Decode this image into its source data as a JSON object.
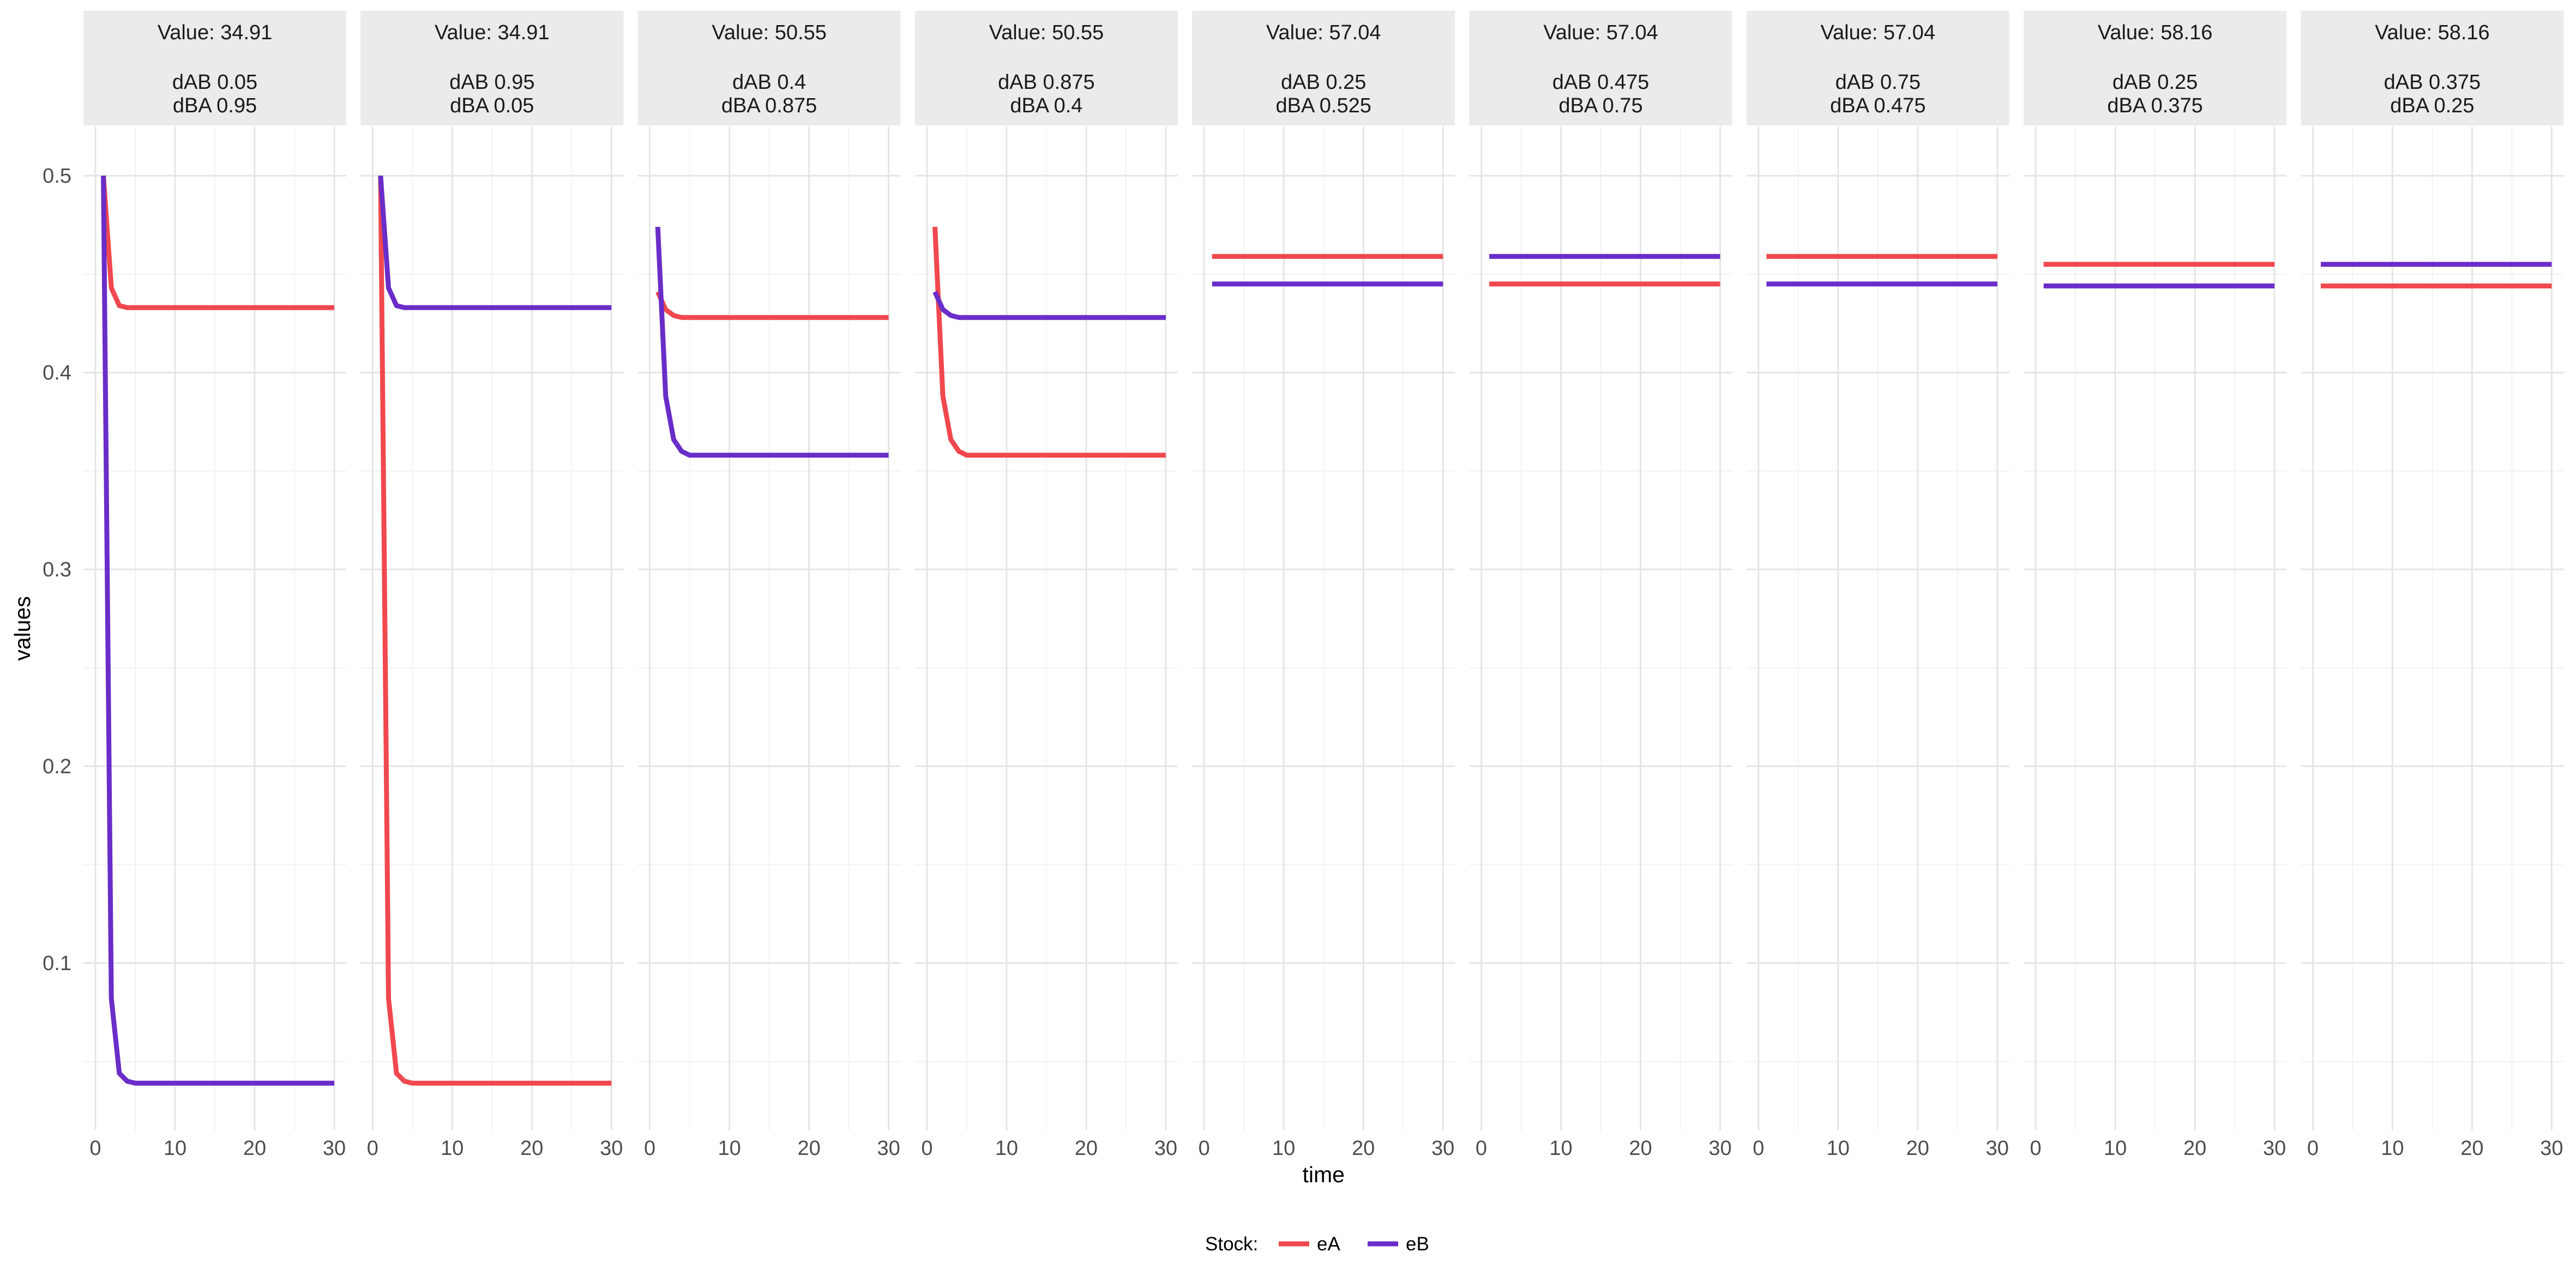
{
  "chart_data": {
    "type": "line",
    "xlabel": "time",
    "ylabel": "values",
    "xlim": [
      0,
      30
    ],
    "ylim": [
      0.015,
      0.525
    ],
    "x_ticks": [
      0,
      10,
      20,
      30
    ],
    "y_ticks": [
      0.1,
      0.2,
      0.3,
      0.4,
      0.5
    ],
    "y_tick_labels": [
      "0.1",
      "0.2",
      "0.3",
      "0.4",
      "0.5"
    ],
    "grid": true,
    "legend": {
      "title": "Stock:",
      "position": "bottom",
      "entries": [
        {
          "name": "eA",
          "color": "#f0484e"
        },
        {
          "name": "eB",
          "color": "#6a2dc8"
        }
      ]
    },
    "panels": [
      {
        "strip": [
          "Value:  34.91",
          "",
          "dAB 0.05",
          " dBA 0.95"
        ],
        "series": [
          {
            "name": "eA",
            "points": [
              [
                1,
                0.5
              ],
              [
                2,
                0.443
              ],
              [
                3,
                0.434
              ],
              [
                4,
                0.433
              ],
              [
                5,
                0.433
              ],
              [
                30,
                0.433
              ]
            ]
          },
          {
            "name": "eB",
            "points": [
              [
                1,
                0.5
              ],
              [
                2,
                0.082
              ],
              [
                3,
                0.044
              ],
              [
                4,
                0.04
              ],
              [
                5,
                0.039
              ],
              [
                30,
                0.039
              ]
            ]
          }
        ]
      },
      {
        "strip": [
          "Value:  34.91",
          "",
          "dAB 0.95",
          " dBA 0.05"
        ],
        "series": [
          {
            "name": "eA",
            "points": [
              [
                1,
                0.5
              ],
              [
                2,
                0.082
              ],
              [
                3,
                0.044
              ],
              [
                4,
                0.04
              ],
              [
                5,
                0.039
              ],
              [
                30,
                0.039
              ]
            ]
          },
          {
            "name": "eB",
            "points": [
              [
                1,
                0.5
              ],
              [
                2,
                0.443
              ],
              [
                3,
                0.434
              ],
              [
                4,
                0.433
              ],
              [
                5,
                0.433
              ],
              [
                30,
                0.433
              ]
            ]
          }
        ]
      },
      {
        "strip": [
          "Value:  50.55",
          "",
          "dAB 0.4",
          "dBA 0.875"
        ],
        "series": [
          {
            "name": "eA",
            "points": [
              [
                1,
                0.441
              ],
              [
                2,
                0.432
              ],
              [
                3,
                0.429
              ],
              [
                4,
                0.428
              ],
              [
                5,
                0.428
              ],
              [
                30,
                0.428
              ]
            ]
          },
          {
            "name": "eB",
            "points": [
              [
                1,
                0.474
              ],
              [
                2,
                0.388
              ],
              [
                3,
                0.366
              ],
              [
                4,
                0.36
              ],
              [
                5,
                0.358
              ],
              [
                6,
                0.358
              ],
              [
                30,
                0.358
              ]
            ]
          }
        ]
      },
      {
        "strip": [
          "Value:  50.55",
          "",
          "dAB 0.875",
          " dBA 0.4"
        ],
        "series": [
          {
            "name": "eA",
            "points": [
              [
                1,
                0.474
              ],
              [
                2,
                0.388
              ],
              [
                3,
                0.366
              ],
              [
                4,
                0.36
              ],
              [
                5,
                0.358
              ],
              [
                6,
                0.358
              ],
              [
                30,
                0.358
              ]
            ]
          },
          {
            "name": "eB",
            "points": [
              [
                1,
                0.441
              ],
              [
                2,
                0.432
              ],
              [
                3,
                0.429
              ],
              [
                4,
                0.428
              ],
              [
                5,
                0.428
              ],
              [
                30,
                0.428
              ]
            ]
          }
        ]
      },
      {
        "strip": [
          "Value:  57.04",
          "",
          "dAB 0.25",
          "dBA 0.525"
        ],
        "series": [
          {
            "name": "eA",
            "points": [
              [
                1,
                0.459
              ],
              [
                30,
                0.459
              ]
            ]
          },
          {
            "name": "eB",
            "points": [
              [
                1,
                0.445
              ],
              [
                30,
                0.445
              ]
            ]
          }
        ]
      },
      {
        "strip": [
          "Value:  57.04",
          "",
          "dAB 0.475",
          " dBA 0.75"
        ],
        "series": [
          {
            "name": "eA",
            "points": [
              [
                1,
                0.445
              ],
              [
                30,
                0.445
              ]
            ]
          },
          {
            "name": "eB",
            "points": [
              [
                1,
                0.459
              ],
              [
                30,
                0.459
              ]
            ]
          }
        ]
      },
      {
        "strip": [
          "Value:  57.04",
          "",
          "dAB 0.75",
          "dBA 0.475"
        ],
        "series": [
          {
            "name": "eA",
            "points": [
              [
                1,
                0.459
              ],
              [
                30,
                0.459
              ]
            ]
          },
          {
            "name": "eB",
            "points": [
              [
                1,
                0.445
              ],
              [
                30,
                0.445
              ]
            ]
          }
        ]
      },
      {
        "strip": [
          "Value:  58.16",
          "",
          "dAB 0.25",
          "dBA 0.375"
        ],
        "series": [
          {
            "name": "eA",
            "points": [
              [
                1,
                0.455
              ],
              [
                30,
                0.455
              ]
            ]
          },
          {
            "name": "eB",
            "points": [
              [
                1,
                0.444
              ],
              [
                30,
                0.444
              ]
            ]
          }
        ]
      },
      {
        "strip": [
          "Value:  58.16",
          "",
          "dAB 0.375",
          " dBA 0.25"
        ],
        "series": [
          {
            "name": "eA",
            "points": [
              [
                1,
                0.444
              ],
              [
                30,
                0.444
              ]
            ]
          },
          {
            "name": "eB",
            "points": [
              [
                1,
                0.455
              ],
              [
                30,
                0.455
              ]
            ]
          }
        ]
      }
    ]
  }
}
